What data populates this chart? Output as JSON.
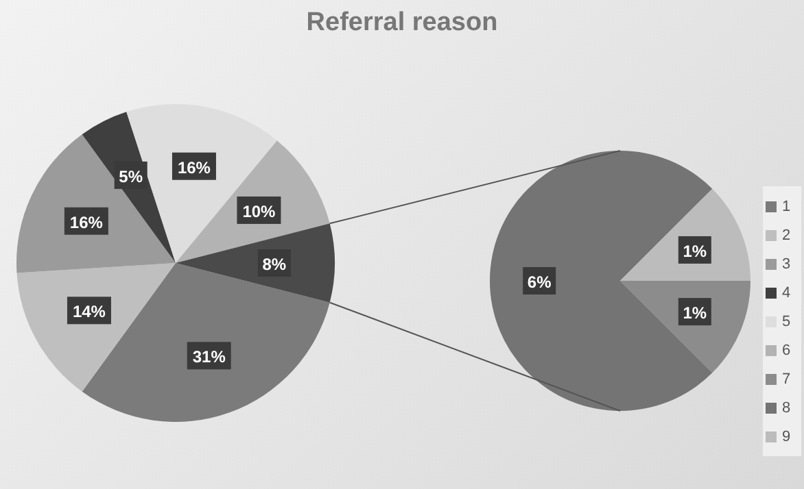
{
  "chart_data": [
    {
      "type": "pie",
      "title": "Referral reason",
      "categories": [
        "1",
        "2",
        "3",
        "4",
        "5",
        "6",
        null
      ],
      "values": [
        31,
        14,
        16,
        5,
        16,
        10,
        8
      ],
      "value_labels": [
        "31%",
        "14%",
        "16%",
        "5%",
        "16%",
        "10%",
        "8%"
      ],
      "colors": [
        "#7b7b7b",
        "#bfbfbf",
        "#9b9b9b",
        "#3f3f3f",
        "#dedede",
        "#b3b3b3",
        "#4a4a4a"
      ],
      "legend": "right"
    },
    {
      "type": "pie",
      "categories": [
        "7",
        "8",
        "9"
      ],
      "values": [
        1,
        6,
        1
      ],
      "value_labels": [
        "1%",
        "6%",
        "1%"
      ],
      "colors": [
        "#8c8c8c",
        "#747474",
        "#bcbcbc"
      ],
      "legend": "right"
    }
  ]
}
